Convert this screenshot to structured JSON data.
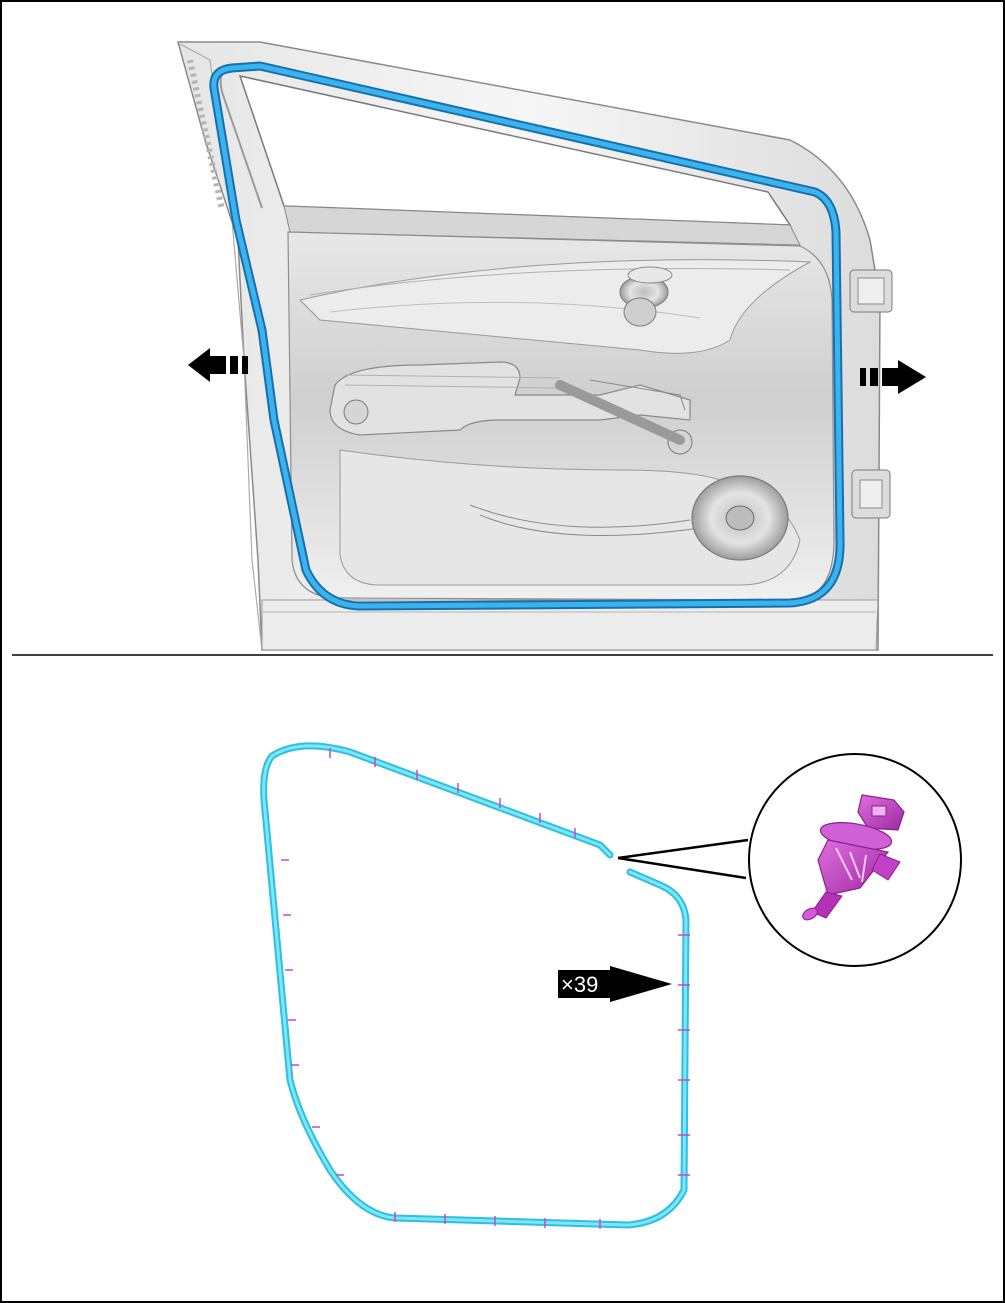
{
  "diagram": {
    "clip_count_label": "×39",
    "colors": {
      "border": "#000000",
      "door_panel_light": "#f1f1f1",
      "door_panel_mid": "#d9d9d9",
      "door_panel_dark": "#9a9a9a",
      "seal_top_view": "#1f9fe0",
      "seal_outline": "#1a6fa8",
      "seal_bottom_view": "#46d9f0",
      "clip_marks": "#d040d0",
      "clip_fill": "#c433c8",
      "clip_dark": "#8a1f8f",
      "arrow_fill": "#000000"
    },
    "icons": {
      "left_arrow": "direction-arrow-left-icon",
      "right_arrow": "direction-arrow-right-icon",
      "callout_arrow": "callout-arrow-icon",
      "clip": "push-clip-icon"
    }
  }
}
